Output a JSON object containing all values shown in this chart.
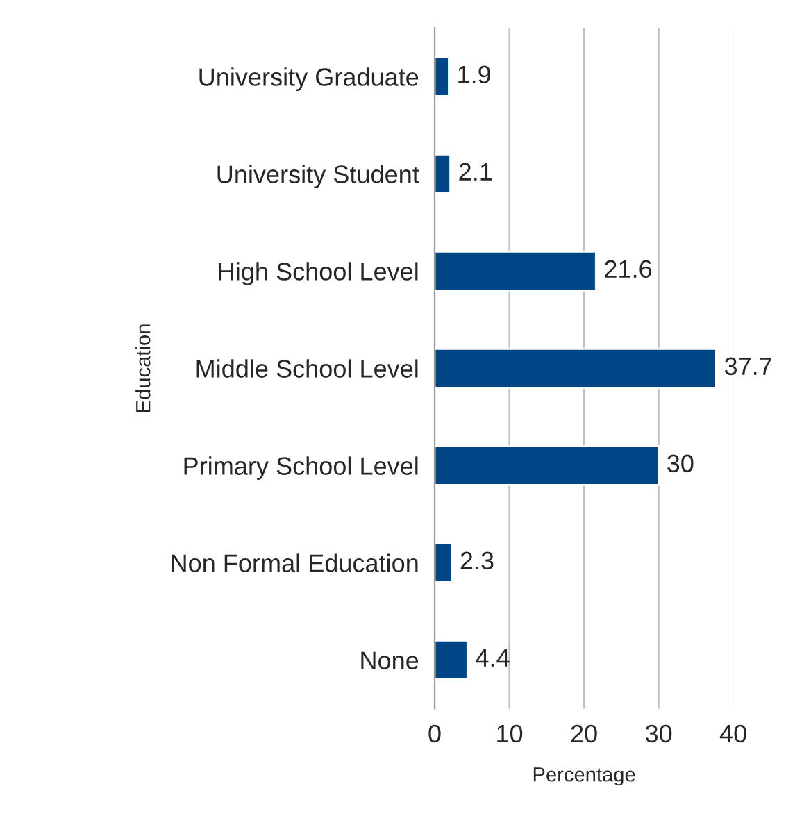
{
  "chart_data": {
    "type": "bar",
    "orientation": "horizontal",
    "xlabel": "Percentage",
    "ylabel": "Education",
    "categories": [
      "University Graduate",
      "University Student",
      "High School Level",
      "Middle School Level",
      "Primary School Level",
      "Non Formal Education",
      "None"
    ],
    "values": [
      1.9,
      2.1,
      21.6,
      37.7,
      30,
      2.3,
      4.4
    ],
    "color": "#004586",
    "xlim": [
      0,
      40
    ],
    "xticks": [
      0,
      10,
      20,
      30,
      40
    ],
    "grid": "x",
    "data_labels": true,
    "legend": false
  }
}
